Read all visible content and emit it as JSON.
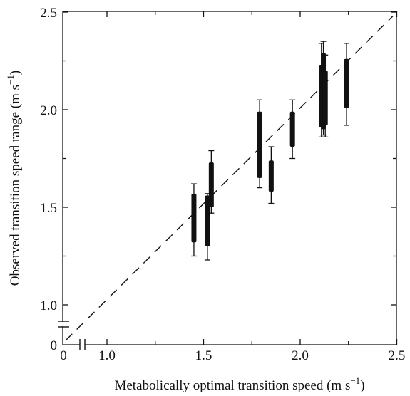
{
  "chart_data": {
    "type": "range",
    "xlabel": "Metabolically optimal transition speed (m s",
    "xlabel_sup": "−1",
    "xlabel_end": ")",
    "ylabel": "Observed transition speed range (m s",
    "ylabel_sup": "−1",
    "ylabel_end": ")",
    "xlim": [
      0.8,
      2.5
    ],
    "ylim": [
      0.8,
      2.5
    ],
    "x_ticks": [
      {
        "value": 1.0,
        "label": "1.0"
      },
      {
        "value": 1.5,
        "label": "1.5"
      },
      {
        "value": 2.0,
        "label": "2.0"
      },
      {
        "value": 2.5,
        "label": "2.5"
      }
    ],
    "x_zero_label": "0",
    "y_ticks": [
      {
        "value": 1.0,
        "label": "1.0"
      },
      {
        "value": 1.5,
        "label": "1.5"
      },
      {
        "value": 2.0,
        "label": "2.0"
      },
      {
        "value": 2.5,
        "label": "2.5"
      }
    ],
    "y_zero_label": "0",
    "axis_breaks": true,
    "identity_line": {
      "from": [
        0.8,
        0.8
      ],
      "to": [
        2.5,
        2.5
      ],
      "style": "dashed"
    },
    "series": [
      {
        "points": [
          {
            "x": 1.45,
            "whisker_low": 1.25,
            "whisker_high": 1.62,
            "box_low": 1.32,
            "box_high": 1.57
          },
          {
            "x": 1.52,
            "whisker_low": 1.23,
            "whisker_high": 1.57,
            "box_low": 1.3,
            "box_high": 1.56
          },
          {
            "x": 1.54,
            "whisker_low": 1.47,
            "whisker_high": 1.79,
            "box_low": 1.5,
            "box_high": 1.73
          },
          {
            "x": 1.79,
            "whisker_low": 1.6,
            "whisker_high": 2.05,
            "box_low": 1.65,
            "box_high": 1.99
          },
          {
            "x": 1.85,
            "whisker_low": 1.52,
            "whisker_high": 1.81,
            "box_low": 1.58,
            "box_high": 1.74
          },
          {
            "x": 1.96,
            "whisker_low": 1.75,
            "whisker_high": 2.05,
            "box_low": 1.81,
            "box_high": 1.99
          },
          {
            "x": 2.11,
            "whisker_low": 1.86,
            "whisker_high": 2.34,
            "box_low": 1.91,
            "box_high": 2.23
          },
          {
            "x": 2.12,
            "whisker_low": 1.87,
            "whisker_high": 2.35,
            "box_low": 1.9,
            "box_high": 2.29
          },
          {
            "x": 2.13,
            "whisker_low": 1.86,
            "whisker_high": 2.28,
            "box_low": 1.92,
            "box_high": 2.2
          },
          {
            "x": 2.24,
            "whisker_low": 1.92,
            "whisker_high": 2.34,
            "box_low": 2.01,
            "box_high": 2.26
          }
        ]
      }
    ],
    "grid": false,
    "legend": "none"
  }
}
